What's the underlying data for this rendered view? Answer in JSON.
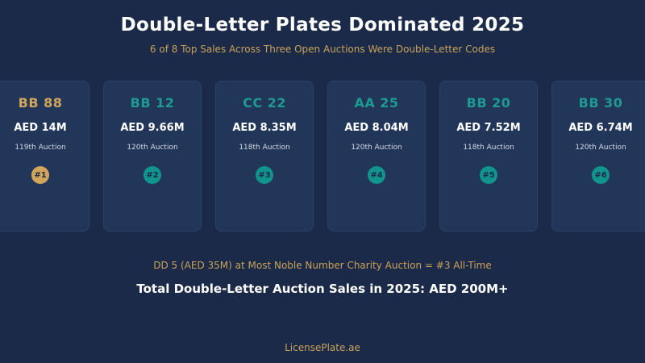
{
  "header": {
    "title": "Double-Letter Plates Dominated 2025",
    "subtitle": "6 of 8 Top Sales Across Three Open Auctions Were Double-Letter Codes"
  },
  "colors": {
    "background": "#1b2a48",
    "gold": "#d2a65a",
    "teal": "#1e9a92"
  },
  "cards": [
    {
      "plate": "BB 88",
      "price": "AED 14M",
      "auction": "119th Auction",
      "rank": "#1",
      "accent": "gold"
    },
    {
      "plate": "BB 12",
      "price": "AED 9.66M",
      "auction": "120th Auction",
      "rank": "#2",
      "accent": "teal"
    },
    {
      "plate": "CC 22",
      "price": "AED 8.35M",
      "auction": "118th Auction",
      "rank": "#3",
      "accent": "teal"
    },
    {
      "plate": "AA 25",
      "price": "AED 8.04M",
      "auction": "120th Auction",
      "rank": "#4",
      "accent": "teal"
    },
    {
      "plate": "BB 20",
      "price": "AED 7.52M",
      "auction": "118th Auction",
      "rank": "#5",
      "accent": "teal"
    },
    {
      "plate": "BB 30",
      "price": "AED 6.74M",
      "auction": "120th Auction",
      "rank": "#6",
      "accent": "teal"
    }
  ],
  "note": "DD 5 (AED 35M) at Most Noble Number Charity Auction = #3 All-Time",
  "total": "Total Double-Letter Auction Sales in 2025: AED 200M+",
  "footer": "LicensePlate.ae"
}
